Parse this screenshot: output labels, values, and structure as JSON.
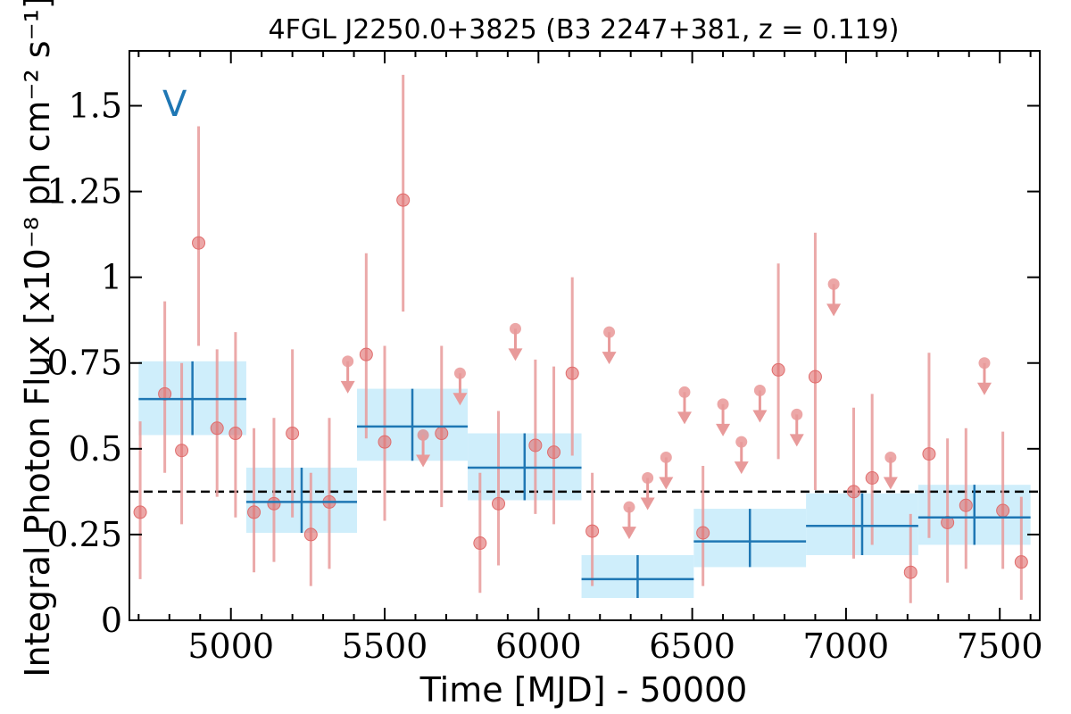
{
  "chart_data": {
    "type": "scatter",
    "title": "4FGL J2250.0+3825 (B3 2247+381, z = 0.119)",
    "xlabel": "Time [MJD] - 50000",
    "ylabel": "Integral Photon Flux [x10⁻⁸ ph cm⁻² s⁻¹]",
    "panel_label": "V",
    "xlim": [
      4670,
      7630
    ],
    "ylim": [
      0,
      1.66
    ],
    "xticks": [
      5000,
      5500,
      6000,
      6500,
      7000,
      7500
    ],
    "xtick_labels": [
      "5000",
      "5500",
      "6000",
      "6500",
      "7000",
      "7500"
    ],
    "yticks": [
      0,
      0.25,
      0.5,
      0.75,
      1,
      1.25,
      1.5
    ],
    "ytick_labels": [
      "0",
      "0.25",
      "0.5",
      "0.75",
      "1",
      "1.25",
      "1.5"
    ],
    "grid": false,
    "mean_flux": 0.375,
    "colors": {
      "points": "#e06c6c",
      "errorbars": "#e89a9a",
      "bins": "#1f77b4",
      "bin_fill": "#cfeefb",
      "mean_line": "#000000"
    },
    "series": [
      {
        "kind": "detections",
        "points": [
          {
            "x": 4705,
            "y": 0.315,
            "lo": 0.12,
            "hi": 0.58
          },
          {
            "x": 4785,
            "y": 0.66,
            "lo": 0.43,
            "hi": 0.93
          },
          {
            "x": 4840,
            "y": 0.495,
            "lo": 0.28,
            "hi": 0.75
          },
          {
            "x": 4895,
            "y": 1.1,
            "lo": 0.8,
            "hi": 1.44
          },
          {
            "x": 4955,
            "y": 0.56,
            "lo": 0.36,
            "hi": 0.79
          },
          {
            "x": 5015,
            "y": 0.545,
            "lo": 0.3,
            "hi": 0.84
          },
          {
            "x": 5075,
            "y": 0.315,
            "lo": 0.14,
            "hi": 0.56
          },
          {
            "x": 5140,
            "y": 0.34,
            "lo": 0.17,
            "hi": 0.59
          },
          {
            "x": 5200,
            "y": 0.545,
            "lo": 0.3,
            "hi": 0.79
          },
          {
            "x": 5260,
            "y": 0.25,
            "lo": 0.1,
            "hi": 0.43
          },
          {
            "x": 5320,
            "y": 0.345,
            "lo": 0.15,
            "hi": 0.59
          },
          {
            "x": 5440,
            "y": 0.775,
            "lo": 0.53,
            "hi": 1.07
          },
          {
            "x": 5500,
            "y": 0.52,
            "lo": 0.29,
            "hi": 0.8
          },
          {
            "x": 5560,
            "y": 1.225,
            "lo": 0.9,
            "hi": 1.59
          },
          {
            "x": 5685,
            "y": 0.545,
            "lo": 0.33,
            "hi": 0.8
          },
          {
            "x": 5810,
            "y": 0.225,
            "lo": 0.08,
            "hi": 0.43
          },
          {
            "x": 5870,
            "y": 0.34,
            "lo": 0.16,
            "hi": 0.61
          },
          {
            "x": 5990,
            "y": 0.51,
            "lo": 0.31,
            "hi": 0.76
          },
          {
            "x": 6050,
            "y": 0.49,
            "lo": 0.28,
            "hi": 0.74
          },
          {
            "x": 6110,
            "y": 0.72,
            "lo": 0.48,
            "hi": 1.0
          },
          {
            "x": 6175,
            "y": 0.26,
            "lo": 0.1,
            "hi": 0.43
          },
          {
            "x": 6535,
            "y": 0.255,
            "lo": 0.1,
            "hi": 0.45
          },
          {
            "x": 6780,
            "y": 0.73,
            "lo": 0.47,
            "hi": 1.04
          },
          {
            "x": 6900,
            "y": 0.71,
            "lo": 0.38,
            "hi": 1.13
          },
          {
            "x": 7025,
            "y": 0.375,
            "lo": 0.18,
            "hi": 0.62
          },
          {
            "x": 7085,
            "y": 0.415,
            "lo": 0.22,
            "hi": 0.66
          },
          {
            "x": 7210,
            "y": 0.14,
            "lo": 0.05,
            "hi": 0.31
          },
          {
            "x": 7270,
            "y": 0.485,
            "lo": 0.24,
            "hi": 0.78
          },
          {
            "x": 7330,
            "y": 0.285,
            "lo": 0.11,
            "hi": 0.53
          },
          {
            "x": 7390,
            "y": 0.335,
            "lo": 0.15,
            "hi": 0.56
          },
          {
            "x": 7510,
            "y": 0.32,
            "lo": 0.15,
            "hi": 0.55
          },
          {
            "x": 7570,
            "y": 0.17,
            "lo": 0.06,
            "hi": 0.36
          }
        ]
      },
      {
        "kind": "upper_limits",
        "points": [
          {
            "x": 5380,
            "y": 0.755
          },
          {
            "x": 5625,
            "y": 0.54
          },
          {
            "x": 5745,
            "y": 0.72
          },
          {
            "x": 5925,
            "y": 0.85
          },
          {
            "x": 6230,
            "y": 0.84
          },
          {
            "x": 6295,
            "y": 0.33
          },
          {
            "x": 6355,
            "y": 0.415
          },
          {
            "x": 6415,
            "y": 0.475
          },
          {
            "x": 6475,
            "y": 0.665
          },
          {
            "x": 6600,
            "y": 0.63
          },
          {
            "x": 6660,
            "y": 0.52
          },
          {
            "x": 6720,
            "y": 0.67
          },
          {
            "x": 6840,
            "y": 0.6
          },
          {
            "x": 6960,
            "y": 0.98
          },
          {
            "x": 7145,
            "y": 0.475
          },
          {
            "x": 7450,
            "y": 0.75
          }
        ]
      },
      {
        "kind": "bins",
        "points": [
          {
            "x0": 4700,
            "x1": 5050,
            "y": 0.645,
            "lo": 0.54,
            "hi": 0.755
          },
          {
            "x0": 5050,
            "x1": 5410,
            "y": 0.345,
            "lo": 0.255,
            "hi": 0.445
          },
          {
            "x0": 5410,
            "x1": 5770,
            "y": 0.565,
            "lo": 0.465,
            "hi": 0.675
          },
          {
            "x0": 5770,
            "x1": 6140,
            "y": 0.445,
            "lo": 0.35,
            "hi": 0.545
          },
          {
            "x0": 6140,
            "x1": 6505,
            "y": 0.12,
            "lo": 0.065,
            "hi": 0.19
          },
          {
            "x0": 6505,
            "x1": 6870,
            "y": 0.23,
            "lo": 0.155,
            "hi": 0.325
          },
          {
            "x0": 6870,
            "x1": 7235,
            "y": 0.275,
            "lo": 0.19,
            "hi": 0.37
          },
          {
            "x0": 7235,
            "x1": 7600,
            "y": 0.3,
            "lo": 0.22,
            "hi": 0.395
          }
        ]
      }
    ]
  }
}
